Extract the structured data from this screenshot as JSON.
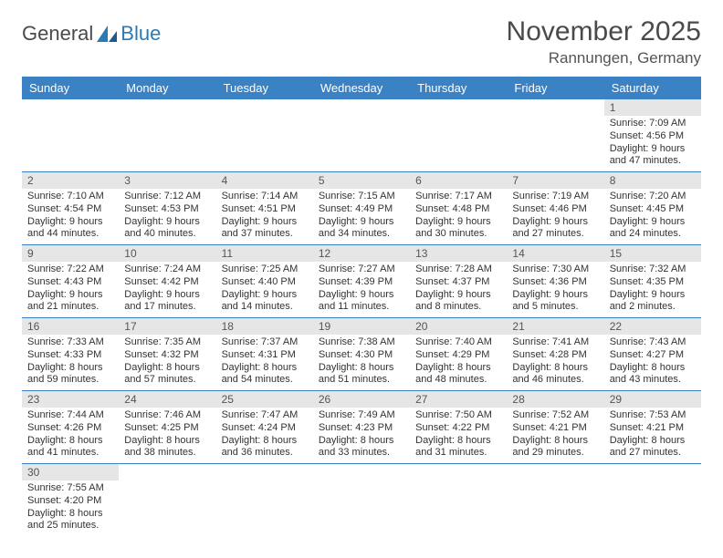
{
  "logo": {
    "general": "General",
    "blue": "Blue"
  },
  "title": "November 2025",
  "location": "Rannungen, Germany",
  "colors": {
    "header_bg": "#3b82c4",
    "header_text": "#ffffff",
    "daynum_bg": "#e6e6e6",
    "border": "#3b82c4",
    "logo_blue": "#2a7ab8",
    "logo_gray": "#4a4a4a"
  },
  "day_headers": [
    "Sunday",
    "Monday",
    "Tuesday",
    "Wednesday",
    "Thursday",
    "Friday",
    "Saturday"
  ],
  "weeks": [
    [
      null,
      null,
      null,
      null,
      null,
      null,
      {
        "n": "1",
        "sunrise": "Sunrise: 7:09 AM",
        "sunset": "Sunset: 4:56 PM",
        "daylight": "Daylight: 9 hours and 47 minutes."
      }
    ],
    [
      {
        "n": "2",
        "sunrise": "Sunrise: 7:10 AM",
        "sunset": "Sunset: 4:54 PM",
        "daylight": "Daylight: 9 hours and 44 minutes."
      },
      {
        "n": "3",
        "sunrise": "Sunrise: 7:12 AM",
        "sunset": "Sunset: 4:53 PM",
        "daylight": "Daylight: 9 hours and 40 minutes."
      },
      {
        "n": "4",
        "sunrise": "Sunrise: 7:14 AM",
        "sunset": "Sunset: 4:51 PM",
        "daylight": "Daylight: 9 hours and 37 minutes."
      },
      {
        "n": "5",
        "sunrise": "Sunrise: 7:15 AM",
        "sunset": "Sunset: 4:49 PM",
        "daylight": "Daylight: 9 hours and 34 minutes."
      },
      {
        "n": "6",
        "sunrise": "Sunrise: 7:17 AM",
        "sunset": "Sunset: 4:48 PM",
        "daylight": "Daylight: 9 hours and 30 minutes."
      },
      {
        "n": "7",
        "sunrise": "Sunrise: 7:19 AM",
        "sunset": "Sunset: 4:46 PM",
        "daylight": "Daylight: 9 hours and 27 minutes."
      },
      {
        "n": "8",
        "sunrise": "Sunrise: 7:20 AM",
        "sunset": "Sunset: 4:45 PM",
        "daylight": "Daylight: 9 hours and 24 minutes."
      }
    ],
    [
      {
        "n": "9",
        "sunrise": "Sunrise: 7:22 AM",
        "sunset": "Sunset: 4:43 PM",
        "daylight": "Daylight: 9 hours and 21 minutes."
      },
      {
        "n": "10",
        "sunrise": "Sunrise: 7:24 AM",
        "sunset": "Sunset: 4:42 PM",
        "daylight": "Daylight: 9 hours and 17 minutes."
      },
      {
        "n": "11",
        "sunrise": "Sunrise: 7:25 AM",
        "sunset": "Sunset: 4:40 PM",
        "daylight": "Daylight: 9 hours and 14 minutes."
      },
      {
        "n": "12",
        "sunrise": "Sunrise: 7:27 AM",
        "sunset": "Sunset: 4:39 PM",
        "daylight": "Daylight: 9 hours and 11 minutes."
      },
      {
        "n": "13",
        "sunrise": "Sunrise: 7:28 AM",
        "sunset": "Sunset: 4:37 PM",
        "daylight": "Daylight: 9 hours and 8 minutes."
      },
      {
        "n": "14",
        "sunrise": "Sunrise: 7:30 AM",
        "sunset": "Sunset: 4:36 PM",
        "daylight": "Daylight: 9 hours and 5 minutes."
      },
      {
        "n": "15",
        "sunrise": "Sunrise: 7:32 AM",
        "sunset": "Sunset: 4:35 PM",
        "daylight": "Daylight: 9 hours and 2 minutes."
      }
    ],
    [
      {
        "n": "16",
        "sunrise": "Sunrise: 7:33 AM",
        "sunset": "Sunset: 4:33 PM",
        "daylight": "Daylight: 8 hours and 59 minutes."
      },
      {
        "n": "17",
        "sunrise": "Sunrise: 7:35 AM",
        "sunset": "Sunset: 4:32 PM",
        "daylight": "Daylight: 8 hours and 57 minutes."
      },
      {
        "n": "18",
        "sunrise": "Sunrise: 7:37 AM",
        "sunset": "Sunset: 4:31 PM",
        "daylight": "Daylight: 8 hours and 54 minutes."
      },
      {
        "n": "19",
        "sunrise": "Sunrise: 7:38 AM",
        "sunset": "Sunset: 4:30 PM",
        "daylight": "Daylight: 8 hours and 51 minutes."
      },
      {
        "n": "20",
        "sunrise": "Sunrise: 7:40 AM",
        "sunset": "Sunset: 4:29 PM",
        "daylight": "Daylight: 8 hours and 48 minutes."
      },
      {
        "n": "21",
        "sunrise": "Sunrise: 7:41 AM",
        "sunset": "Sunset: 4:28 PM",
        "daylight": "Daylight: 8 hours and 46 minutes."
      },
      {
        "n": "22",
        "sunrise": "Sunrise: 7:43 AM",
        "sunset": "Sunset: 4:27 PM",
        "daylight": "Daylight: 8 hours and 43 minutes."
      }
    ],
    [
      {
        "n": "23",
        "sunrise": "Sunrise: 7:44 AM",
        "sunset": "Sunset: 4:26 PM",
        "daylight": "Daylight: 8 hours and 41 minutes."
      },
      {
        "n": "24",
        "sunrise": "Sunrise: 7:46 AM",
        "sunset": "Sunset: 4:25 PM",
        "daylight": "Daylight: 8 hours and 38 minutes."
      },
      {
        "n": "25",
        "sunrise": "Sunrise: 7:47 AM",
        "sunset": "Sunset: 4:24 PM",
        "daylight": "Daylight: 8 hours and 36 minutes."
      },
      {
        "n": "26",
        "sunrise": "Sunrise: 7:49 AM",
        "sunset": "Sunset: 4:23 PM",
        "daylight": "Daylight: 8 hours and 33 minutes."
      },
      {
        "n": "27",
        "sunrise": "Sunrise: 7:50 AM",
        "sunset": "Sunset: 4:22 PM",
        "daylight": "Daylight: 8 hours and 31 minutes."
      },
      {
        "n": "28",
        "sunrise": "Sunrise: 7:52 AM",
        "sunset": "Sunset: 4:21 PM",
        "daylight": "Daylight: 8 hours and 29 minutes."
      },
      {
        "n": "29",
        "sunrise": "Sunrise: 7:53 AM",
        "sunset": "Sunset: 4:21 PM",
        "daylight": "Daylight: 8 hours and 27 minutes."
      }
    ],
    [
      {
        "n": "30",
        "sunrise": "Sunrise: 7:55 AM",
        "sunset": "Sunset: 4:20 PM",
        "daylight": "Daylight: 8 hours and 25 minutes."
      },
      null,
      null,
      null,
      null,
      null,
      null
    ]
  ]
}
